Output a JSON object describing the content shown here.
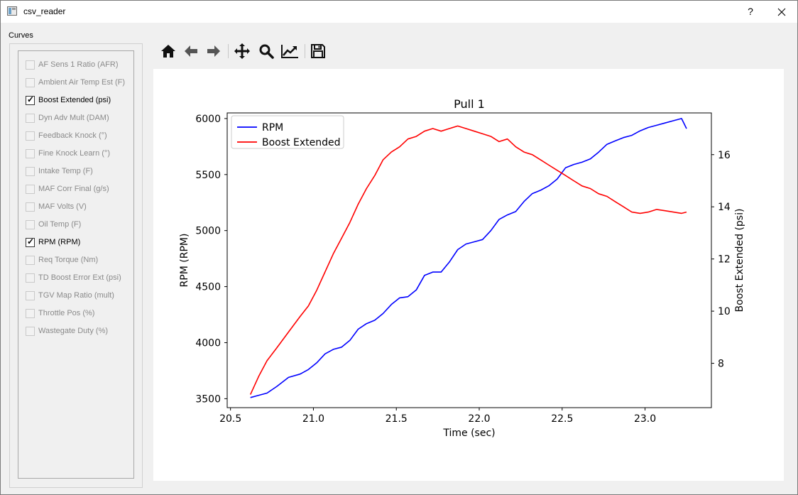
{
  "window": {
    "title": "csv_reader",
    "help_label": "?"
  },
  "sidebar": {
    "group_title": "Curves",
    "items": [
      {
        "label": "AF Sens 1 Ratio (AFR)",
        "checked": false
      },
      {
        "label": "Ambient Air Temp Est (F)",
        "checked": false
      },
      {
        "label": "Boost Extended (psi)",
        "checked": true
      },
      {
        "label": "Dyn Adv Mult (DAM)",
        "checked": false
      },
      {
        "label": "Feedback Knock (°)",
        "checked": false
      },
      {
        "label": "Fine Knock Learn (°)",
        "checked": false
      },
      {
        "label": "Intake Temp (F)",
        "checked": false
      },
      {
        "label": "MAF Corr Final (g/s)",
        "checked": false
      },
      {
        "label": "MAF Volts (V)",
        "checked": false
      },
      {
        "label": "Oil Temp (F)",
        "checked": false
      },
      {
        "label": "RPM (RPM)",
        "checked": true
      },
      {
        "label": "Req Torque (Nm)",
        "checked": false
      },
      {
        "label": "TD Boost Error Ext (psi)",
        "checked": false
      },
      {
        "label": "TGV Map Ratio (mult)",
        "checked": false
      },
      {
        "label": "Throttle Pos (%)",
        "checked": false
      },
      {
        "label": "Wastegate Duty (%)",
        "checked": false
      }
    ]
  },
  "toolbar": {
    "buttons": [
      {
        "name": "home",
        "icon": "home-icon"
      },
      {
        "name": "back",
        "icon": "arrow-left-icon"
      },
      {
        "name": "forward",
        "icon": "arrow-right-icon"
      },
      {
        "name": "pan",
        "icon": "move-icon"
      },
      {
        "name": "zoom",
        "icon": "magnifier-icon"
      },
      {
        "name": "subplots",
        "icon": "chart-line-icon"
      },
      {
        "name": "save",
        "icon": "save-icon"
      }
    ]
  },
  "chart_data": {
    "type": "line",
    "title": "Pull 1",
    "xlabel": "Time (sec)",
    "ylabel": "RPM (RPM)",
    "y2label": "Boost Extended (psi)",
    "xlim": [
      20.48,
      23.4
    ],
    "ylim": [
      3420,
      6050
    ],
    "y2lim": [
      6.3,
      17.6
    ],
    "xticks": [
      20.5,
      21.0,
      21.5,
      22.0,
      22.5,
      23.0
    ],
    "xtick_labels": [
      "20.5",
      "21.0",
      "21.5",
      "22.0",
      "22.5",
      "23.0"
    ],
    "yticks": [
      3500,
      4000,
      4500,
      5000,
      5500,
      6000
    ],
    "ytick_labels": [
      "3500",
      "4000",
      "4500",
      "5000",
      "5500",
      "6000"
    ],
    "y2ticks": [
      8,
      10,
      12,
      14,
      16
    ],
    "y2tick_labels": [
      "8",
      "10",
      "12",
      "14",
      "16"
    ],
    "legend_position": "top-left",
    "grid": false,
    "series": [
      {
        "name": "RPM",
        "axis": "left",
        "color": "#0000ff",
        "x": [
          20.62,
          20.67,
          20.72,
          20.78,
          20.85,
          20.92,
          20.97,
          21.02,
          21.07,
          21.12,
          21.17,
          21.22,
          21.27,
          21.32,
          21.37,
          21.42,
          21.47,
          21.52,
          21.57,
          21.62,
          21.67,
          21.72,
          21.77,
          21.82,
          21.87,
          21.92,
          21.97,
          22.02,
          22.07,
          22.12,
          22.17,
          22.22,
          22.27,
          22.32,
          22.37,
          22.42,
          22.47,
          22.52,
          22.57,
          22.62,
          22.67,
          22.72,
          22.77,
          22.82,
          22.87,
          22.92,
          22.97,
          23.02,
          23.07,
          23.12,
          23.17,
          23.22,
          23.25
        ],
        "y": [
          3510,
          3530,
          3550,
          3610,
          3690,
          3720,
          3760,
          3820,
          3900,
          3940,
          3960,
          4020,
          4120,
          4170,
          4200,
          4260,
          4340,
          4400,
          4410,
          4470,
          4600,
          4630,
          4630,
          4720,
          4830,
          4880,
          4900,
          4920,
          5000,
          5100,
          5140,
          5170,
          5260,
          5330,
          5360,
          5400,
          5460,
          5560,
          5590,
          5610,
          5640,
          5700,
          5770,
          5800,
          5830,
          5850,
          5890,
          5920,
          5940,
          5960,
          5980,
          6000,
          5910
        ]
      },
      {
        "name": "Boost Extended",
        "axis": "right",
        "color": "#ff0000",
        "x": [
          20.62,
          20.67,
          20.72,
          20.78,
          20.85,
          20.92,
          20.97,
          21.02,
          21.07,
          21.12,
          21.17,
          21.22,
          21.27,
          21.32,
          21.37,
          21.42,
          21.47,
          21.52,
          21.57,
          21.62,
          21.67,
          21.72,
          21.77,
          21.82,
          21.87,
          21.92,
          21.97,
          22.02,
          22.07,
          22.12,
          22.17,
          22.22,
          22.27,
          22.32,
          22.37,
          22.42,
          22.47,
          22.52,
          22.57,
          22.62,
          22.67,
          22.72,
          22.77,
          22.82,
          22.87,
          22.92,
          22.97,
          23.02,
          23.07,
          23.12,
          23.17,
          23.22,
          23.25
        ],
        "y": [
          6.8,
          7.5,
          8.1,
          8.6,
          9.2,
          9.8,
          10.2,
          10.8,
          11.5,
          12.2,
          12.8,
          13.4,
          14.1,
          14.7,
          15.2,
          15.8,
          16.1,
          16.3,
          16.6,
          16.7,
          16.9,
          17.0,
          16.9,
          17.0,
          17.1,
          17.0,
          16.9,
          16.8,
          16.7,
          16.5,
          16.6,
          16.3,
          16.1,
          16.0,
          15.8,
          15.6,
          15.4,
          15.2,
          15.0,
          14.8,
          14.7,
          14.5,
          14.4,
          14.2,
          14.0,
          13.8,
          13.75,
          13.8,
          13.9,
          13.85,
          13.8,
          13.75,
          13.8
        ]
      }
    ]
  }
}
